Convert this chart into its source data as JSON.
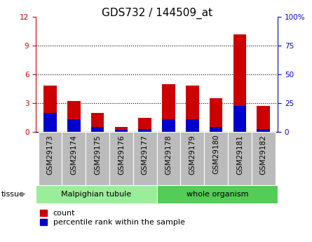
{
  "title": "GDS732 / 144509_at",
  "samples": [
    "GSM29173",
    "GSM29174",
    "GSM29175",
    "GSM29176",
    "GSM29177",
    "GSM29178",
    "GSM29179",
    "GSM29180",
    "GSM29181",
    "GSM29182"
  ],
  "count_values": [
    4.8,
    3.2,
    2.0,
    0.5,
    1.5,
    5.0,
    4.8,
    3.5,
    10.2,
    2.7
  ],
  "percentile_values": [
    2.0,
    1.3,
    0.5,
    0.2,
    0.3,
    1.3,
    1.3,
    0.5,
    2.7,
    0.3
  ],
  "count_color": "#cc0000",
  "percentile_color": "#0000cc",
  "ylim_left": [
    0,
    12
  ],
  "ylim_right": [
    0,
    100
  ],
  "yticks_left": [
    0,
    3,
    6,
    9,
    12
  ],
  "yticks_right": [
    0,
    25,
    50,
    75,
    100
  ],
  "ytick_labels_right": [
    "0",
    "25",
    "50",
    "75",
    "100%"
  ],
  "groups": [
    {
      "label": "Malpighian tubule",
      "indices": [
        0,
        1,
        2,
        3,
        4
      ],
      "color": "#99ee99"
    },
    {
      "label": "whole organism",
      "indices": [
        5,
        6,
        7,
        8,
        9
      ],
      "color": "#55cc55"
    }
  ],
  "tissue_label": "tissue",
  "legend_count": "count",
  "legend_percentile": "percentile rank within the sample",
  "bar_width": 0.55,
  "grid_color": "#000000",
  "bg_color": "#ffffff",
  "tick_bg_color": "#bbbbbb",
  "title_fontsize": 11,
  "tick_fontsize": 7.5,
  "legend_fontsize": 8
}
